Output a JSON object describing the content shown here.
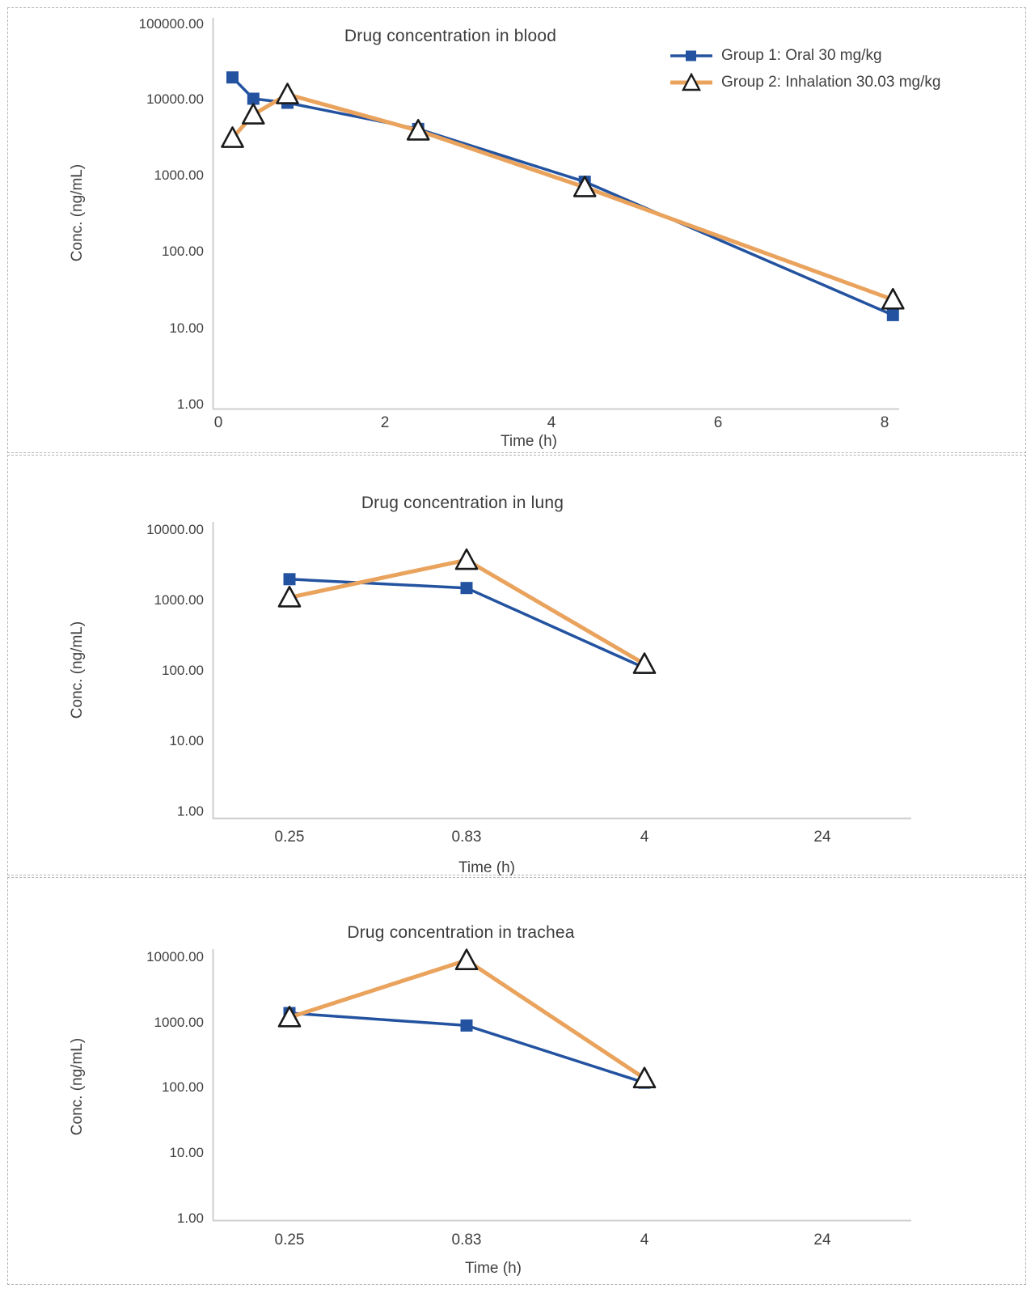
{
  "page": {
    "background": "#ffffff"
  },
  "colors": {
    "oral_blue": "#2353a0",
    "inhalation_orange": "#e9a35d",
    "marker_outline": "#1a1a1a",
    "axis_gray": "#c9c9c9",
    "text_dark": "#3f3f3f"
  },
  "legend": {
    "items": [
      {
        "label": "Group 1: Oral 30 mg/kg",
        "series": "oral",
        "marker": "square"
      },
      {
        "label": "Group 2: Inhalation 30.03 mg/kg",
        "series": "inhalation",
        "marker": "triangle"
      }
    ]
  },
  "chart_data": [
    {
      "id": "blood",
      "type": "line",
      "title": "Drug concentration in blood",
      "xlabel": "Time (h)",
      "ylabel": "Conc. (ng/mL)",
      "x_axis": {
        "type": "linear",
        "ticks": [
          "0",
          "2",
          "4",
          "6",
          "8"
        ],
        "range": [
          0,
          8
        ]
      },
      "y_axis": {
        "type": "log",
        "ticks": [
          "100000.00",
          "10000.00",
          "1000.00",
          "100.00",
          "10.00",
          "1.00"
        ],
        "range": [
          1,
          100000
        ]
      },
      "x": [
        0.17,
        0.42,
        0.83,
        2.4,
        4.4,
        8.1
      ],
      "series": [
        {
          "key": "oral",
          "name": "Group 1: Oral 30 mg/kg",
          "values": [
            20000,
            10500,
            9300,
            4200,
            850,
            15
          ]
        },
        {
          "key": "inhalation",
          "name": "Group 2: Inhalation 30.03 mg/kg",
          "values": [
            3200,
            6500,
            12000,
            4000,
            720,
            24
          ]
        }
      ],
      "legend_position": "top-right",
      "grid": false
    },
    {
      "id": "lung",
      "type": "line",
      "title": "Drug concentration in lung",
      "xlabel": "Time (h)",
      "ylabel": "Conc. (ng/mL)",
      "x_axis": {
        "type": "category",
        "ticks": [
          "0.25",
          "0.83",
          "4",
          "24"
        ]
      },
      "y_axis": {
        "type": "log",
        "ticks": [
          "10000.00",
          "1000.00",
          "100.00",
          "10.00",
          "1.00"
        ],
        "range": [
          1,
          10000
        ]
      },
      "categories": [
        "0.25",
        "0.83",
        "4",
        "24"
      ],
      "series": [
        {
          "key": "oral",
          "name": "Group 1: Oral 30 mg/kg",
          "values": [
            2000,
            1500,
            110,
            null
          ]
        },
        {
          "key": "inhalation",
          "name": "Group 2: Inhalation 30.03 mg/kg",
          "values": [
            1100,
            3750,
            125,
            null
          ]
        }
      ],
      "legend_position": "none",
      "grid": false
    },
    {
      "id": "trachea",
      "type": "line",
      "title": "Drug concentration in trachea",
      "xlabel": "Time (h)",
      "ylabel": "Conc. (ng/mL)",
      "x_axis": {
        "type": "category",
        "ticks": [
          "0.25",
          "0.83",
          "4",
          "24"
        ]
      },
      "y_axis": {
        "type": "log",
        "ticks": [
          "10000.00",
          "1000.00",
          "100.00",
          "10.00",
          "1.00"
        ],
        "range": [
          1,
          10000
        ]
      },
      "categories": [
        "0.25",
        "0.83",
        "4",
        "24"
      ],
      "series": [
        {
          "key": "oral",
          "name": "Group 1: Oral 30 mg/kg",
          "values": [
            1400,
            900,
            120,
            null
          ]
        },
        {
          "key": "inhalation",
          "name": "Group 2: Inhalation 30.03 mg/kg",
          "values": [
            1200,
            9000,
            140,
            null
          ]
        }
      ],
      "legend_position": "none",
      "grid": false
    }
  ]
}
